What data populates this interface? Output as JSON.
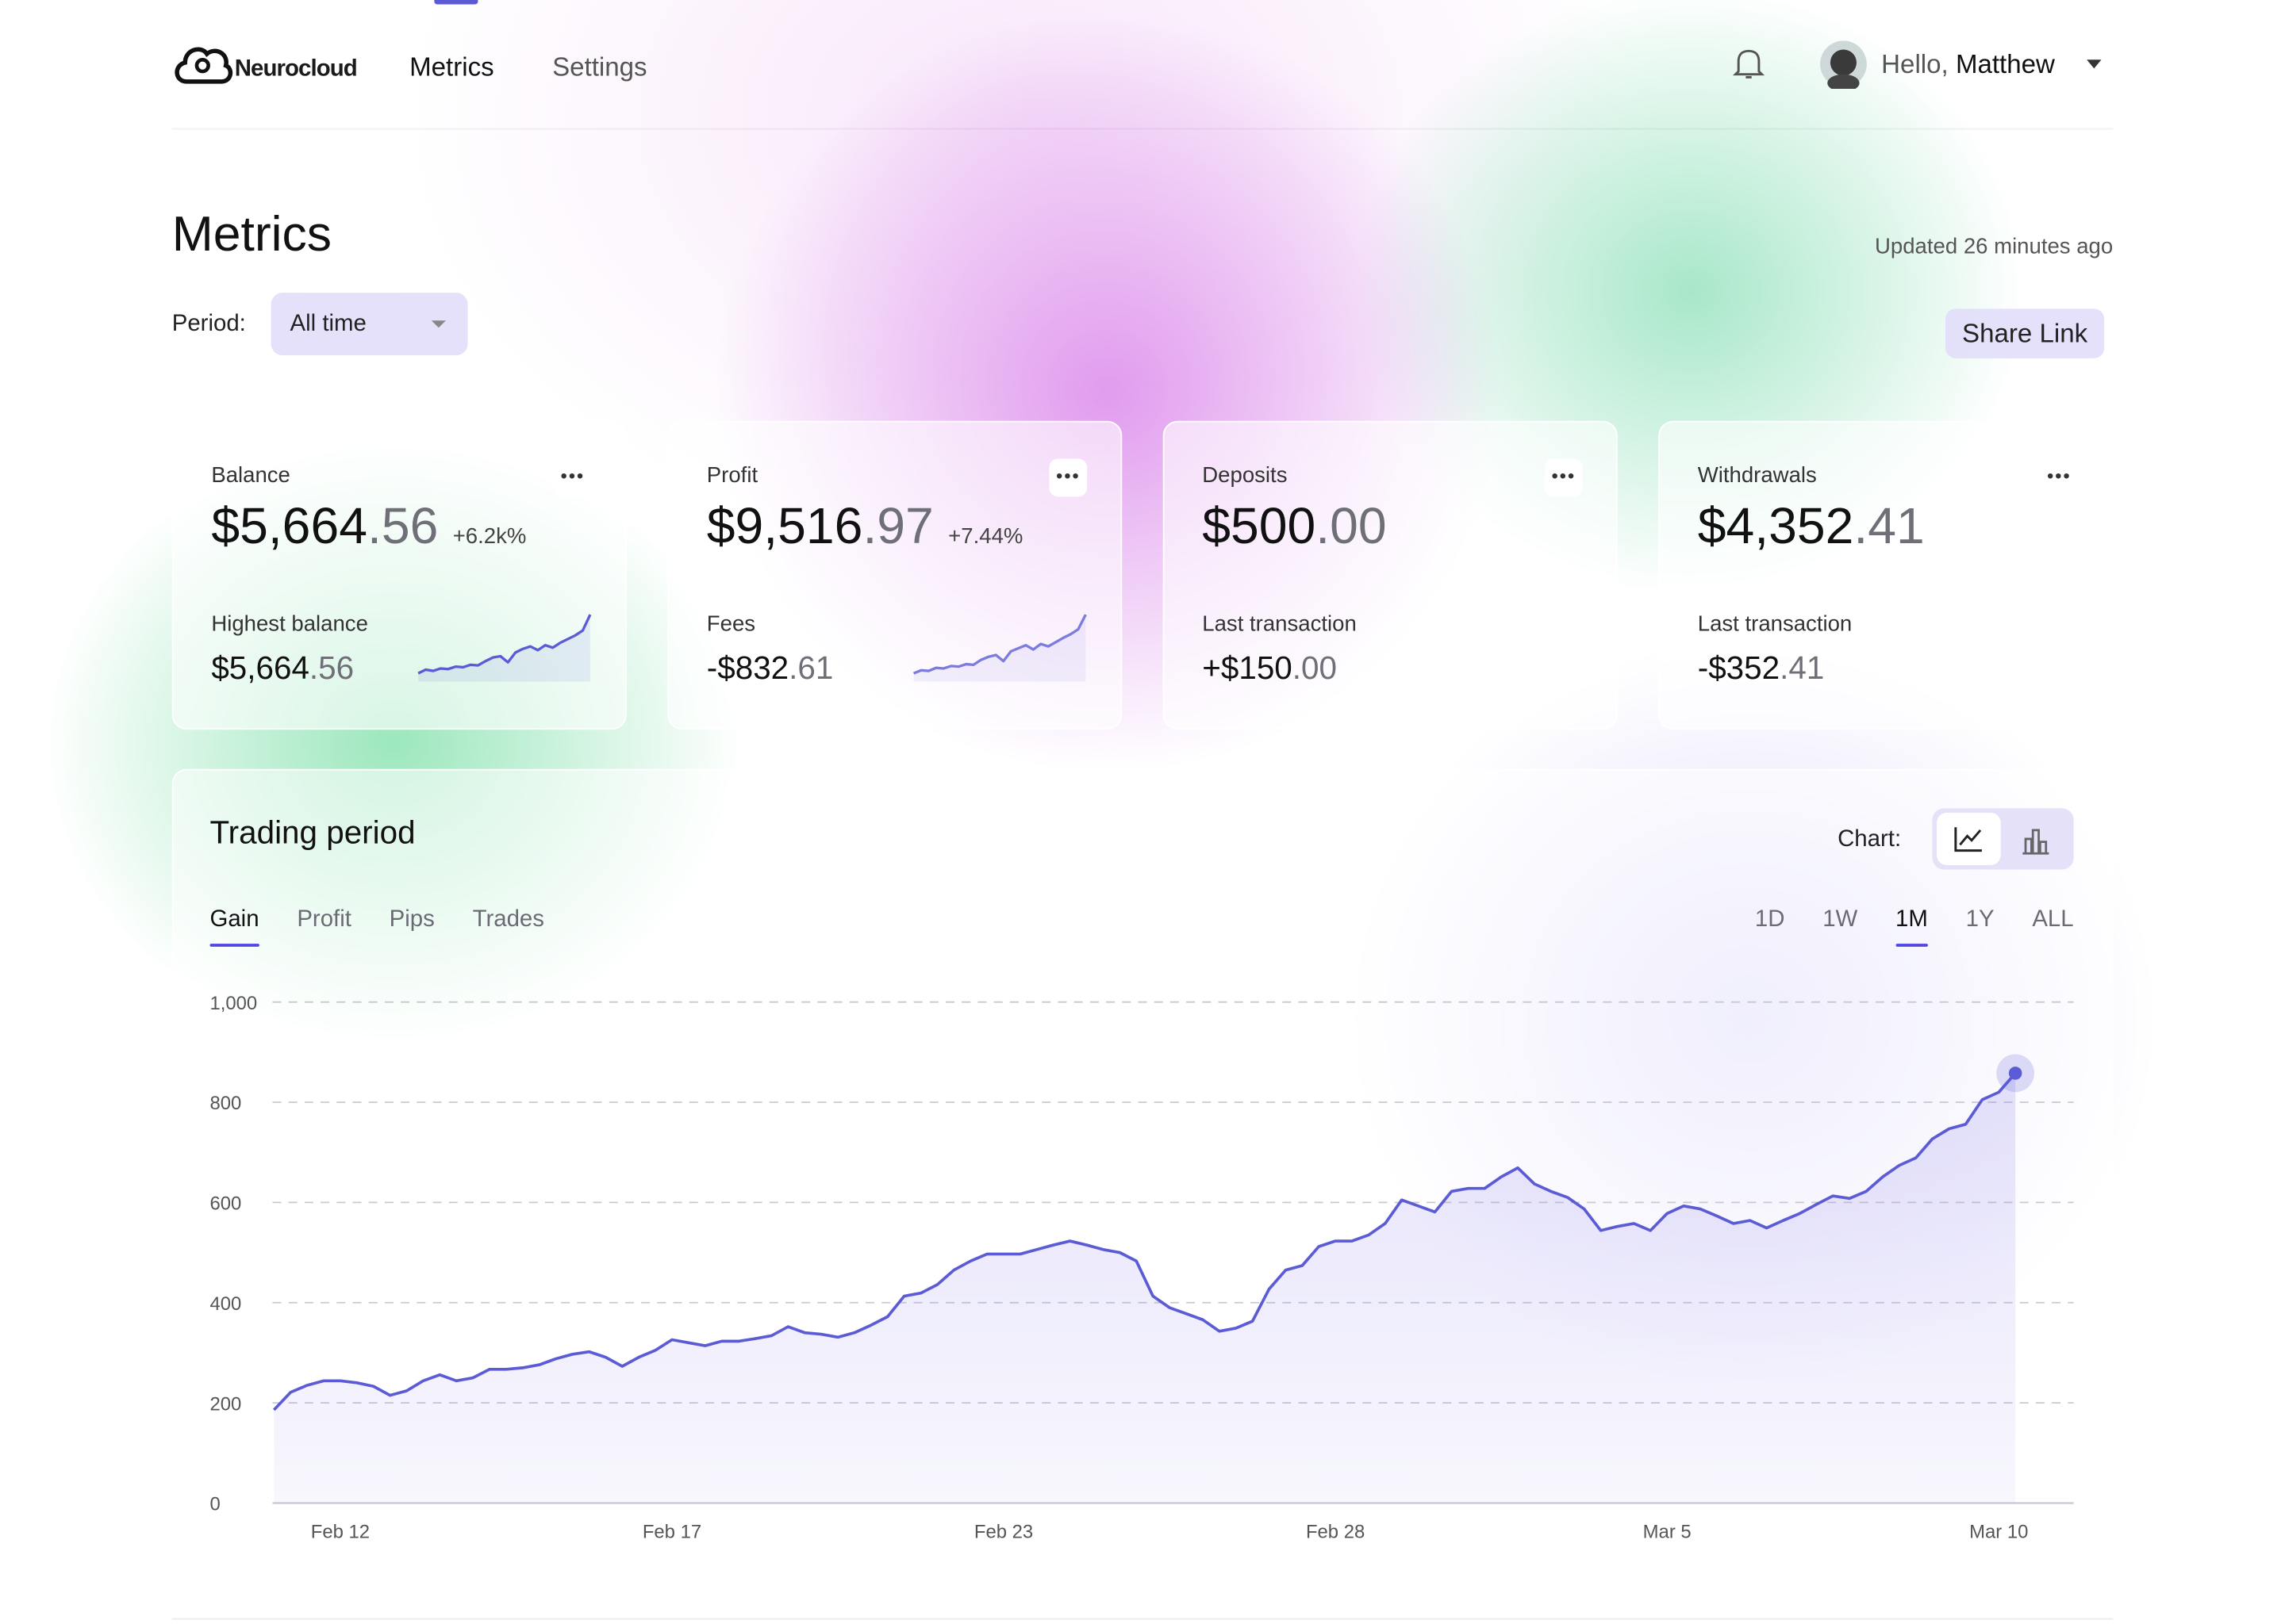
{
  "nav": {
    "brand": "Neurocloud",
    "links": [
      "Metrics",
      "Settings"
    ],
    "greeting": "Hello,",
    "user": "Matthew"
  },
  "header": {
    "title": "Metrics",
    "updated": "Updated 26 minutes ago",
    "period_label": "Period:",
    "period_value": "All time",
    "share": "Share Link"
  },
  "cards": [
    {
      "title": "Balance",
      "amount_main": "$5,664",
      "amount_cents": ".56",
      "change": "+6.2k%",
      "sub_title": "Highest balance",
      "sub_main": "$5,664",
      "sub_cents": ".56",
      "sparkline": {
        "type": "line",
        "color": "#5b5bd6",
        "ylim": [
          0,
          100
        ],
        "values": [
          4,
          10,
          8,
          12,
          11,
          15,
          14,
          18,
          17,
          24,
          30,
          32,
          22,
          38,
          44,
          48,
          42,
          50,
          46,
          54,
          60,
          66,
          74,
          100
        ]
      }
    },
    {
      "title": "Profit",
      "amount_main": "$9,516",
      "amount_cents": ".97",
      "change": "+7.44%",
      "sub_title": "Fees",
      "sub_main": "-$832",
      "sub_cents": ".61",
      "sparkline": {
        "type": "line",
        "color": "#7b7be0",
        "ylim": [
          0,
          100
        ],
        "values": [
          4,
          9,
          8,
          13,
          12,
          16,
          15,
          19,
          18,
          26,
          31,
          34,
          24,
          40,
          45,
          50,
          43,
          52,
          48,
          55,
          62,
          68,
          76,
          100
        ]
      }
    },
    {
      "title": "Deposits",
      "amount_main": "$500",
      "amount_cents": ".00",
      "sub_title": "Last transaction",
      "sub_main": "+$150",
      "sub_cents": ".00"
    },
    {
      "title": "Withdrawals",
      "amount_main": "$4,352",
      "amount_cents": ".41",
      "sub_title": "Last transaction",
      "sub_main": "-$352",
      "sub_cents": ".41"
    }
  ],
  "trading": {
    "title": "Trading period",
    "chart_label": "Chart:",
    "tabs": [
      "Gain",
      "Profit",
      "Pips",
      "Trades"
    ],
    "active_tab": 0,
    "ranges": [
      "1D",
      "1W",
      "1M",
      "1Y",
      "ALL"
    ],
    "active_range": 2,
    "chart": {
      "type": "line",
      "color": "#5b5bd6",
      "grid": true,
      "ylim": [
        0,
        1000
      ],
      "yticks": [
        0,
        200,
        400,
        600,
        800,
        {
          "value": 1000,
          "label": "1,000"
        }
      ],
      "categories": [
        null,
        null,
        null,
        null,
        "Feb 12",
        null,
        null,
        null,
        null,
        null,
        null,
        null,
        null,
        null,
        null,
        null,
        null,
        null,
        null,
        null,
        null,
        null,
        null,
        null,
        "Feb 17",
        null,
        null,
        null,
        null,
        null,
        null,
        null,
        null,
        null,
        null,
        null,
        null,
        null,
        null,
        null,
        null,
        null,
        null,
        null,
        "Feb 23",
        null,
        null,
        null,
        null,
        null,
        null,
        null,
        null,
        null,
        null,
        null,
        null,
        null,
        null,
        null,
        null,
        null,
        null,
        null,
        "Feb 28",
        null,
        null,
        null,
        null,
        null,
        null,
        null,
        null,
        null,
        null,
        null,
        null,
        null,
        null,
        null,
        null,
        null,
        null,
        null,
        "Mar 5",
        null,
        null,
        null,
        null,
        null,
        null,
        null,
        null,
        null,
        null,
        null,
        null,
        null,
        null,
        null,
        null,
        null,
        null,
        null,
        "Mar 10",
        null
      ],
      "values": [
        186,
        221,
        235,
        244,
        244,
        240,
        233,
        215,
        224,
        244,
        256,
        244,
        250,
        267,
        267,
        270,
        276,
        288,
        297,
        302,
        291,
        273,
        291,
        305,
        326,
        320,
        314,
        323,
        323,
        328,
        334,
        352,
        340,
        337,
        331,
        340,
        355,
        372,
        413,
        419,
        436,
        465,
        483,
        497,
        497,
        497,
        506,
        515,
        523,
        515,
        506,
        500,
        483,
        413,
        390,
        378,
        366,
        343,
        349,
        363,
        427,
        465,
        474,
        512,
        523,
        523,
        535,
        558,
        605,
        593,
        581,
        622,
        628,
        628,
        651,
        669,
        637,
        622,
        610,
        587,
        544,
        552,
        558,
        544,
        578,
        593,
        587,
        573,
        558,
        564,
        549,
        564,
        578,
        596,
        613,
        608,
        622,
        651,
        674,
        689,
        727,
        747,
        756,
        805,
        820,
        858
      ]
    }
  }
}
